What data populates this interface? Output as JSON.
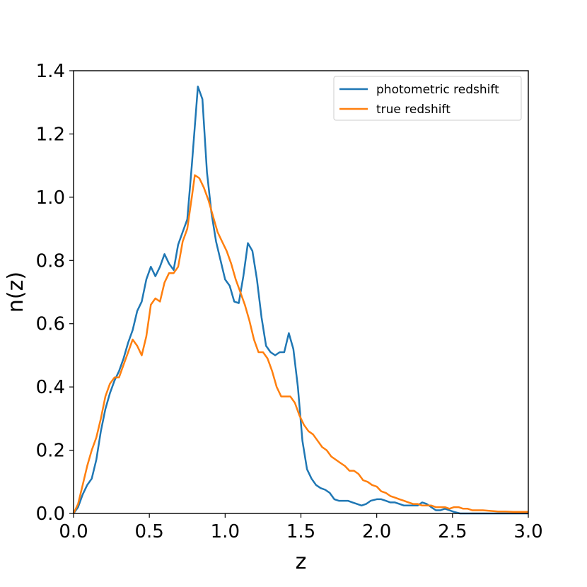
{
  "chart_data": {
    "type": "line",
    "xlabel": "z",
    "ylabel": "n(z)",
    "xlim": [
      0.0,
      3.0
    ],
    "ylim": [
      0.0,
      1.4
    ],
    "xticks": [
      "0.0",
      "0.5",
      "1.0",
      "1.5",
      "2.0",
      "2.5",
      "3.0"
    ],
    "yticks": [
      "0.0",
      "0.2",
      "0.4",
      "0.6",
      "0.8",
      "1.0",
      "1.2",
      "1.4"
    ],
    "grid": false,
    "legend_position": "top-right",
    "series": [
      {
        "name": "photometric redshift",
        "color": "#1f77b4",
        "points": [
          [
            0.0,
            0.0
          ],
          [
            0.03,
            0.02
          ],
          [
            0.06,
            0.06
          ],
          [
            0.09,
            0.09
          ],
          [
            0.12,
            0.11
          ],
          [
            0.15,
            0.17
          ],
          [
            0.18,
            0.26
          ],
          [
            0.21,
            0.33
          ],
          [
            0.24,
            0.38
          ],
          [
            0.27,
            0.42
          ],
          [
            0.3,
            0.45
          ],
          [
            0.33,
            0.49
          ],
          [
            0.36,
            0.54
          ],
          [
            0.39,
            0.58
          ],
          [
            0.42,
            0.64
          ],
          [
            0.45,
            0.67
          ],
          [
            0.48,
            0.74
          ],
          [
            0.51,
            0.78
          ],
          [
            0.54,
            0.75
          ],
          [
            0.57,
            0.78
          ],
          [
            0.6,
            0.82
          ],
          [
            0.63,
            0.79
          ],
          [
            0.66,
            0.77
          ],
          [
            0.69,
            0.85
          ],
          [
            0.72,
            0.89
          ],
          [
            0.75,
            0.93
          ],
          [
            0.78,
            1.1
          ],
          [
            0.82,
            1.35
          ],
          [
            0.85,
            1.31
          ],
          [
            0.88,
            1.08
          ],
          [
            0.91,
            0.95
          ],
          [
            0.94,
            0.86
          ],
          [
            0.97,
            0.8
          ],
          [
            1.0,
            0.74
          ],
          [
            1.03,
            0.72
          ],
          [
            1.06,
            0.67
          ],
          [
            1.09,
            0.665
          ],
          [
            1.12,
            0.75
          ],
          [
            1.15,
            0.855
          ],
          [
            1.18,
            0.83
          ],
          [
            1.21,
            0.74
          ],
          [
            1.24,
            0.62
          ],
          [
            1.27,
            0.53
          ],
          [
            1.3,
            0.51
          ],
          [
            1.33,
            0.5
          ],
          [
            1.36,
            0.51
          ],
          [
            1.39,
            0.51
          ],
          [
            1.42,
            0.57
          ],
          [
            1.45,
            0.52
          ],
          [
            1.48,
            0.4
          ],
          [
            1.51,
            0.23
          ],
          [
            1.54,
            0.14
          ],
          [
            1.57,
            0.11
          ],
          [
            1.6,
            0.09
          ],
          [
            1.63,
            0.08
          ],
          [
            1.66,
            0.075
          ],
          [
            1.69,
            0.065
          ],
          [
            1.72,
            0.045
          ],
          [
            1.75,
            0.04
          ],
          [
            1.78,
            0.04
          ],
          [
            1.81,
            0.04
          ],
          [
            1.84,
            0.035
          ],
          [
            1.87,
            0.03
          ],
          [
            1.9,
            0.025
          ],
          [
            1.93,
            0.03
          ],
          [
            1.96,
            0.04
          ],
          [
            2.0,
            0.045
          ],
          [
            2.03,
            0.045
          ],
          [
            2.06,
            0.04
          ],
          [
            2.09,
            0.035
          ],
          [
            2.12,
            0.035
          ],
          [
            2.15,
            0.03
          ],
          [
            2.18,
            0.025
          ],
          [
            2.21,
            0.025
          ],
          [
            2.24,
            0.025
          ],
          [
            2.27,
            0.025
          ],
          [
            2.3,
            0.035
          ],
          [
            2.33,
            0.03
          ],
          [
            2.36,
            0.02
          ],
          [
            2.39,
            0.01
          ],
          [
            2.42,
            0.01
          ],
          [
            2.45,
            0.015
          ],
          [
            2.48,
            0.01
          ],
          [
            2.51,
            0.005
          ],
          [
            2.55,
            0.0
          ],
          [
            2.6,
            0.0
          ],
          [
            2.7,
            0.0
          ],
          [
            2.8,
            0.0
          ],
          [
            2.9,
            0.0
          ],
          [
            3.0,
            0.0
          ]
        ]
      },
      {
        "name": "true redshift",
        "color": "#ff7f0e",
        "points": [
          [
            0.0,
            0.0
          ],
          [
            0.03,
            0.03
          ],
          [
            0.06,
            0.09
          ],
          [
            0.09,
            0.15
          ],
          [
            0.12,
            0.2
          ],
          [
            0.15,
            0.24
          ],
          [
            0.18,
            0.3
          ],
          [
            0.21,
            0.37
          ],
          [
            0.24,
            0.41
          ],
          [
            0.27,
            0.43
          ],
          [
            0.3,
            0.43
          ],
          [
            0.33,
            0.47
          ],
          [
            0.36,
            0.51
          ],
          [
            0.39,
            0.55
          ],
          [
            0.42,
            0.53
          ],
          [
            0.45,
            0.5
          ],
          [
            0.48,
            0.56
          ],
          [
            0.51,
            0.66
          ],
          [
            0.54,
            0.68
          ],
          [
            0.57,
            0.67
          ],
          [
            0.6,
            0.73
          ],
          [
            0.63,
            0.76
          ],
          [
            0.66,
            0.76
          ],
          [
            0.69,
            0.78
          ],
          [
            0.72,
            0.86
          ],
          [
            0.75,
            0.9
          ],
          [
            0.78,
            1.0
          ],
          [
            0.8,
            1.07
          ],
          [
            0.83,
            1.06
          ],
          [
            0.86,
            1.03
          ],
          [
            0.89,
            0.99
          ],
          [
            0.92,
            0.94
          ],
          [
            0.95,
            0.89
          ],
          [
            0.98,
            0.86
          ],
          [
            1.01,
            0.83
          ],
          [
            1.04,
            0.79
          ],
          [
            1.07,
            0.74
          ],
          [
            1.1,
            0.7
          ],
          [
            1.13,
            0.66
          ],
          [
            1.16,
            0.61
          ],
          [
            1.19,
            0.55
          ],
          [
            1.22,
            0.51
          ],
          [
            1.25,
            0.51
          ],
          [
            1.28,
            0.49
          ],
          [
            1.31,
            0.45
          ],
          [
            1.34,
            0.4
          ],
          [
            1.37,
            0.37
          ],
          [
            1.4,
            0.37
          ],
          [
            1.43,
            0.37
          ],
          [
            1.46,
            0.35
          ],
          [
            1.49,
            0.31
          ],
          [
            1.52,
            0.28
          ],
          [
            1.55,
            0.26
          ],
          [
            1.58,
            0.25
          ],
          [
            1.61,
            0.23
          ],
          [
            1.64,
            0.21
          ],
          [
            1.67,
            0.2
          ],
          [
            1.7,
            0.18
          ],
          [
            1.73,
            0.17
          ],
          [
            1.76,
            0.16
          ],
          [
            1.79,
            0.15
          ],
          [
            1.82,
            0.135
          ],
          [
            1.85,
            0.135
          ],
          [
            1.88,
            0.125
          ],
          [
            1.91,
            0.105
          ],
          [
            1.94,
            0.1
          ],
          [
            1.97,
            0.09
          ],
          [
            2.0,
            0.085
          ],
          [
            2.03,
            0.07
          ],
          [
            2.06,
            0.065
          ],
          [
            2.09,
            0.055
          ],
          [
            2.12,
            0.05
          ],
          [
            2.15,
            0.045
          ],
          [
            2.18,
            0.04
          ],
          [
            2.21,
            0.035
          ],
          [
            2.24,
            0.03
          ],
          [
            2.27,
            0.03
          ],
          [
            2.3,
            0.025
          ],
          [
            2.33,
            0.025
          ],
          [
            2.36,
            0.025
          ],
          [
            2.39,
            0.02
          ],
          [
            2.42,
            0.02
          ],
          [
            2.45,
            0.02
          ],
          [
            2.48,
            0.015
          ],
          [
            2.51,
            0.02
          ],
          [
            2.54,
            0.02
          ],
          [
            2.57,
            0.015
          ],
          [
            2.6,
            0.015
          ],
          [
            2.63,
            0.01
          ],
          [
            2.66,
            0.01
          ],
          [
            2.7,
            0.01
          ],
          [
            2.75,
            0.008
          ],
          [
            2.8,
            0.006
          ],
          [
            2.85,
            0.006
          ],
          [
            2.9,
            0.005
          ],
          [
            2.95,
            0.005
          ],
          [
            3.0,
            0.005
          ]
        ]
      }
    ]
  }
}
